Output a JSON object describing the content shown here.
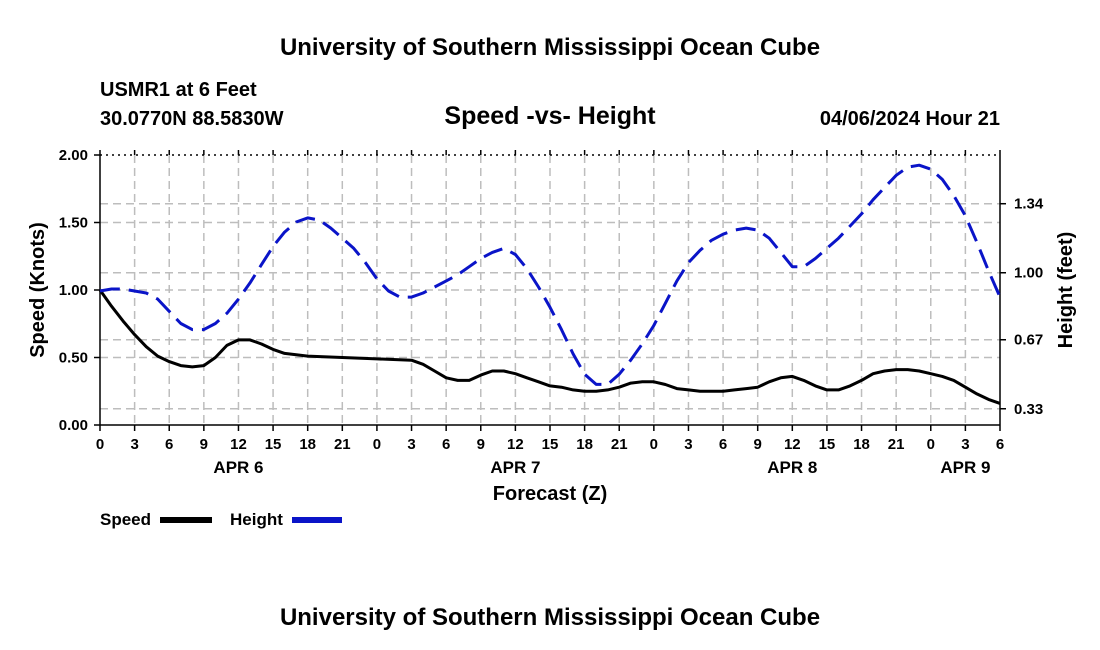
{
  "page": {
    "title_top": "University of Southern Mississippi Ocean Cube",
    "title_bottom": "University of Southern Mississippi Ocean Cube",
    "station": "USMR1 at 6 Feet",
    "coordinates": "30.0770N  88.5830W",
    "chart_title": "Speed -vs- Height",
    "timestamp": "04/06/2024 Hour 21"
  },
  "colors": {
    "speed": "#000000",
    "height": "#0a14c8",
    "grid": "#bdbdbd"
  },
  "chart_data": {
    "type": "line",
    "title": "Speed -vs- Height",
    "xlabel": "Forecast (Z)",
    "ylabel": "Speed (Knots)",
    "y2label": "Height (feet)",
    "x_range": [
      0,
      78
    ],
    "ylim": [
      0,
      2.0
    ],
    "y2lim": [
      0.25,
      1.58
    ],
    "grid": true,
    "x_tick_positions": [
      0,
      3,
      6,
      9,
      12,
      15,
      18,
      21,
      24,
      27,
      30,
      33,
      36,
      39,
      42,
      45,
      48,
      51,
      54,
      57,
      60,
      63,
      66,
      69,
      72,
      75,
      78
    ],
    "x_tick_labels": [
      "0",
      "3",
      "6",
      "9",
      "12",
      "15",
      "18",
      "21",
      "0",
      "3",
      "6",
      "9",
      "12",
      "15",
      "18",
      "21",
      "0",
      "3",
      "6",
      "9",
      "12",
      "15",
      "18",
      "21",
      "0",
      "3",
      "6"
    ],
    "day_labels": [
      {
        "x": 12,
        "label": "APR 6"
      },
      {
        "x": 36,
        "label": "APR 7"
      },
      {
        "x": 60,
        "label": "APR 8"
      },
      {
        "x": 75,
        "label": "APR 9"
      }
    ],
    "y_ticks": [
      0,
      0.5,
      1.0,
      1.5,
      2.0
    ],
    "y_tick_labels": [
      "0.00",
      "0.50",
      "1.00",
      "1.50",
      "2.00"
    ],
    "y2_ticks": [
      0.33,
      0.67,
      1.0,
      1.34
    ],
    "y2_tick_labels": [
      "0.33",
      "0.67",
      "1.00",
      "1.34"
    ],
    "series": [
      {
        "name": "Speed",
        "axis": "left",
        "style": "solid",
        "points": [
          [
            0,
            1.0
          ],
          [
            1,
            0.88
          ],
          [
            2,
            0.77
          ],
          [
            3,
            0.67
          ],
          [
            4,
            0.58
          ],
          [
            5,
            0.51
          ],
          [
            6,
            0.47
          ],
          [
            7,
            0.44
          ],
          [
            8,
            0.43
          ],
          [
            9,
            0.44
          ],
          [
            10,
            0.5
          ],
          [
            11,
            0.59
          ],
          [
            12,
            0.63
          ],
          [
            13,
            0.63
          ],
          [
            14,
            0.6
          ],
          [
            15,
            0.56
          ],
          [
            16,
            0.53
          ],
          [
            17,
            0.52
          ],
          [
            18,
            0.51
          ],
          [
            21,
            0.5
          ],
          [
            24,
            0.49
          ],
          [
            27,
            0.48
          ],
          [
            28,
            0.45
          ],
          [
            29,
            0.4
          ],
          [
            30,
            0.35
          ],
          [
            31,
            0.33
          ],
          [
            32,
            0.33
          ],
          [
            33,
            0.37
          ],
          [
            34,
            0.4
          ],
          [
            35,
            0.4
          ],
          [
            36,
            0.38
          ],
          [
            37,
            0.35
          ],
          [
            38,
            0.32
          ],
          [
            39,
            0.29
          ],
          [
            40,
            0.28
          ],
          [
            41,
            0.26
          ],
          [
            42,
            0.25
          ],
          [
            43,
            0.25
          ],
          [
            44,
            0.26
          ],
          [
            45,
            0.28
          ],
          [
            46,
            0.31
          ],
          [
            47,
            0.32
          ],
          [
            48,
            0.32
          ],
          [
            49,
            0.3
          ],
          [
            50,
            0.27
          ],
          [
            51,
            0.26
          ],
          [
            52,
            0.25
          ],
          [
            53,
            0.25
          ],
          [
            54,
            0.25
          ],
          [
            55,
            0.26
          ],
          [
            56,
            0.27
          ],
          [
            57,
            0.28
          ],
          [
            58,
            0.32
          ],
          [
            59,
            0.35
          ],
          [
            60,
            0.36
          ],
          [
            61,
            0.33
          ],
          [
            62,
            0.29
          ],
          [
            63,
            0.26
          ],
          [
            64,
            0.26
          ],
          [
            65,
            0.29
          ],
          [
            66,
            0.33
          ],
          [
            67,
            0.38
          ],
          [
            68,
            0.4
          ],
          [
            69,
            0.41
          ],
          [
            70,
            0.41
          ],
          [
            71,
            0.4
          ],
          [
            72,
            0.38
          ],
          [
            73,
            0.36
          ],
          [
            74,
            0.33
          ],
          [
            75,
            0.28
          ],
          [
            76,
            0.23
          ],
          [
            77,
            0.19
          ],
          [
            78,
            0.16
          ]
        ]
      },
      {
        "name": "Height",
        "axis": "right",
        "style": "dashed",
        "points": [
          [
            0,
            0.91
          ],
          [
            1,
            0.92
          ],
          [
            2,
            0.92
          ],
          [
            3,
            0.91
          ],
          [
            4,
            0.9
          ],
          [
            5,
            0.87
          ],
          [
            6,
            0.81
          ],
          [
            7,
            0.75
          ],
          [
            8,
            0.72
          ],
          [
            9,
            0.72
          ],
          [
            10,
            0.75
          ],
          [
            11,
            0.8
          ],
          [
            12,
            0.87
          ],
          [
            13,
            0.95
          ],
          [
            14,
            1.04
          ],
          [
            15,
            1.13
          ],
          [
            16,
            1.2
          ],
          [
            17,
            1.25
          ],
          [
            18,
            1.27
          ],
          [
            19,
            1.26
          ],
          [
            20,
            1.22
          ],
          [
            21,
            1.17
          ],
          [
            22,
            1.12
          ],
          [
            23,
            1.05
          ],
          [
            24,
            0.97
          ],
          [
            25,
            0.91
          ],
          [
            26,
            0.88
          ],
          [
            27,
            0.88
          ],
          [
            28,
            0.9
          ],
          [
            29,
            0.93
          ],
          [
            30,
            0.96
          ],
          [
            31,
            0.99
          ],
          [
            32,
            1.03
          ],
          [
            33,
            1.07
          ],
          [
            34,
            1.1
          ],
          [
            35,
            1.12
          ],
          [
            36,
            1.09
          ],
          [
            37,
            1.02
          ],
          [
            38,
            0.93
          ],
          [
            39,
            0.83
          ],
          [
            40,
            0.72
          ],
          [
            41,
            0.6
          ],
          [
            42,
            0.5
          ],
          [
            43,
            0.45
          ],
          [
            44,
            0.45
          ],
          [
            45,
            0.5
          ],
          [
            46,
            0.57
          ],
          [
            47,
            0.65
          ],
          [
            48,
            0.74
          ],
          [
            49,
            0.85
          ],
          [
            50,
            0.96
          ],
          [
            51,
            1.05
          ],
          [
            52,
            1.11
          ],
          [
            53,
            1.16
          ],
          [
            54,
            1.19
          ],
          [
            55,
            1.21
          ],
          [
            56,
            1.22
          ],
          [
            57,
            1.21
          ],
          [
            58,
            1.17
          ],
          [
            59,
            1.1
          ],
          [
            60,
            1.03
          ],
          [
            61,
            1.03
          ],
          [
            62,
            1.07
          ],
          [
            63,
            1.12
          ],
          [
            64,
            1.17
          ],
          [
            65,
            1.23
          ],
          [
            66,
            1.29
          ],
          [
            67,
            1.36
          ],
          [
            68,
            1.42
          ],
          [
            69,
            1.48
          ],
          [
            70,
            1.52
          ],
          [
            71,
            1.53
          ],
          [
            72,
            1.51
          ],
          [
            73,
            1.46
          ],
          [
            74,
            1.38
          ],
          [
            75,
            1.28
          ],
          [
            76,
            1.15
          ],
          [
            77,
            1.01
          ],
          [
            78,
            0.88
          ]
        ]
      }
    ],
    "legend": [
      {
        "label": "Speed",
        "style": "solid"
      },
      {
        "label": "Height",
        "style": "dashed"
      }
    ]
  }
}
